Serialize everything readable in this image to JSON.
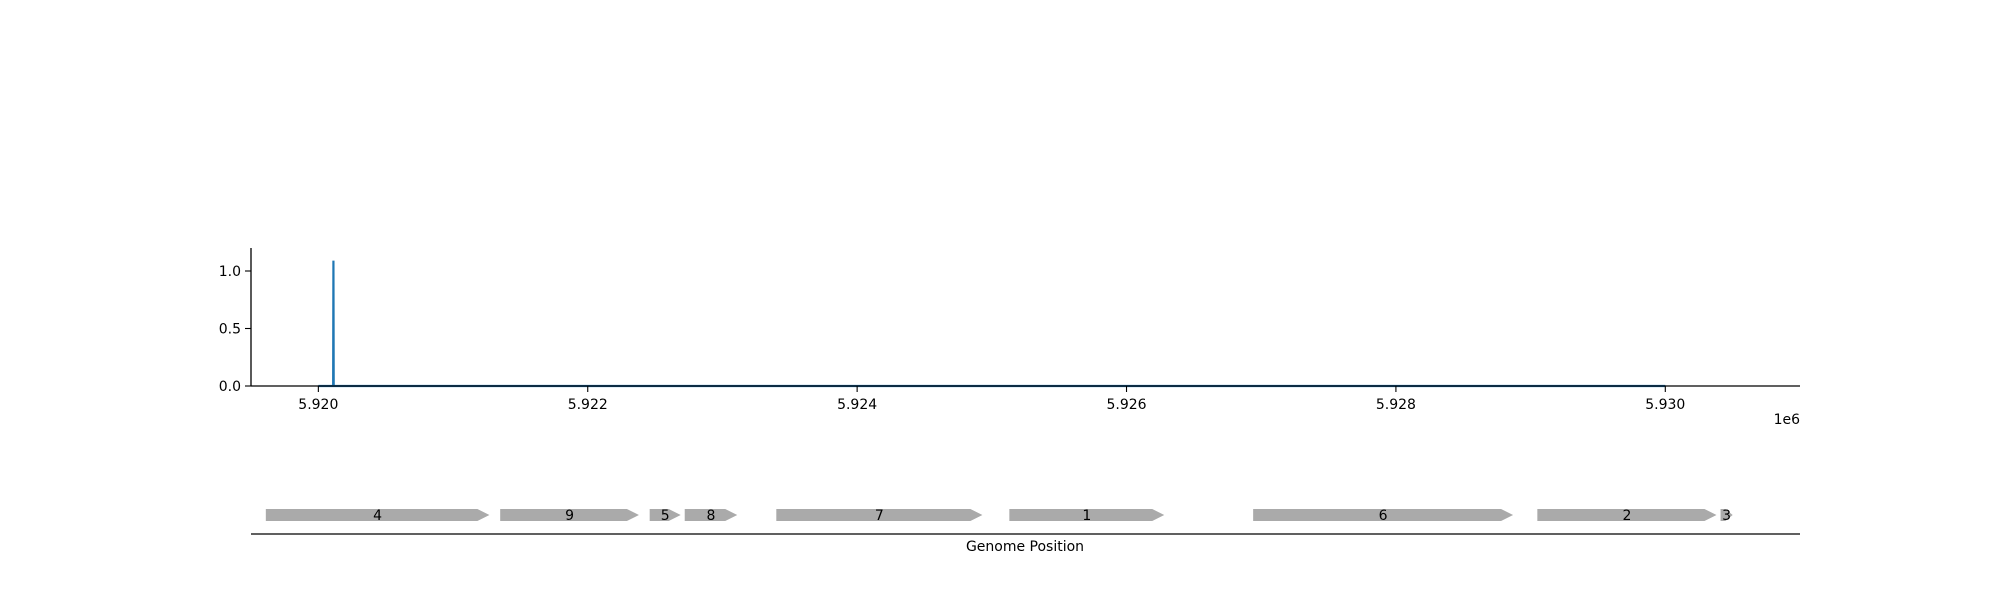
{
  "chart_data": [
    {
      "type": "line",
      "title": "",
      "xlabel": "",
      "ylabel": "",
      "x_offset_label": "1e6",
      "xlim": [
        5919500,
        5931000
      ],
      "ylim": [
        0,
        1.2
      ],
      "x_ticks": [
        {
          "value": 5920000,
          "label": "5.920"
        },
        {
          "value": 5922000,
          "label": "5.922"
        },
        {
          "value": 5924000,
          "label": "5.924"
        },
        {
          "value": 5926000,
          "label": "5.926"
        },
        {
          "value": 5928000,
          "label": "5.928"
        },
        {
          "value": 5930000,
          "label": "5.930"
        }
      ],
      "y_ticks": [
        {
          "value": 0.0,
          "label": "0.0"
        },
        {
          "value": 0.5,
          "label": "0.5"
        },
        {
          "value": 1.0,
          "label": "1.0"
        }
      ],
      "series": [
        {
          "color": "#1f77b4",
          "points": [
            [
              5920000,
              0
            ],
            [
              5920110,
              0
            ],
            [
              5920112,
              1.09
            ],
            [
              5920114,
              0
            ],
            [
              5930000,
              0
            ]
          ]
        }
      ],
      "grid": false
    },
    {
      "type": "gene-track",
      "title": "",
      "xlabel": "Genome Position",
      "xlim": [
        5919500,
        5931000
      ],
      "feature_color": "#aaaaaa",
      "features": [
        {
          "label": "4",
          "start": 5919610,
          "end": 5921270,
          "strand": "+"
        },
        {
          "label": "9",
          "start": 5921350,
          "end": 5922380,
          "strand": "+"
        },
        {
          "label": "5",
          "start": 5922460,
          "end": 5922690,
          "strand": "+"
        },
        {
          "label": "8",
          "start": 5922720,
          "end": 5923110,
          "strand": "+"
        },
        {
          "label": "7",
          "start": 5923400,
          "end": 5924930,
          "strand": "+"
        },
        {
          "label": "1",
          "start": 5925130,
          "end": 5926280,
          "strand": "+"
        },
        {
          "label": "6",
          "start": 5926940,
          "end": 5928870,
          "strand": "+"
        },
        {
          "label": "2",
          "start": 5929050,
          "end": 5930380,
          "strand": "+"
        },
        {
          "label": "3",
          "start": 5930410,
          "end": 5930500,
          "strand": "+"
        }
      ]
    }
  ]
}
